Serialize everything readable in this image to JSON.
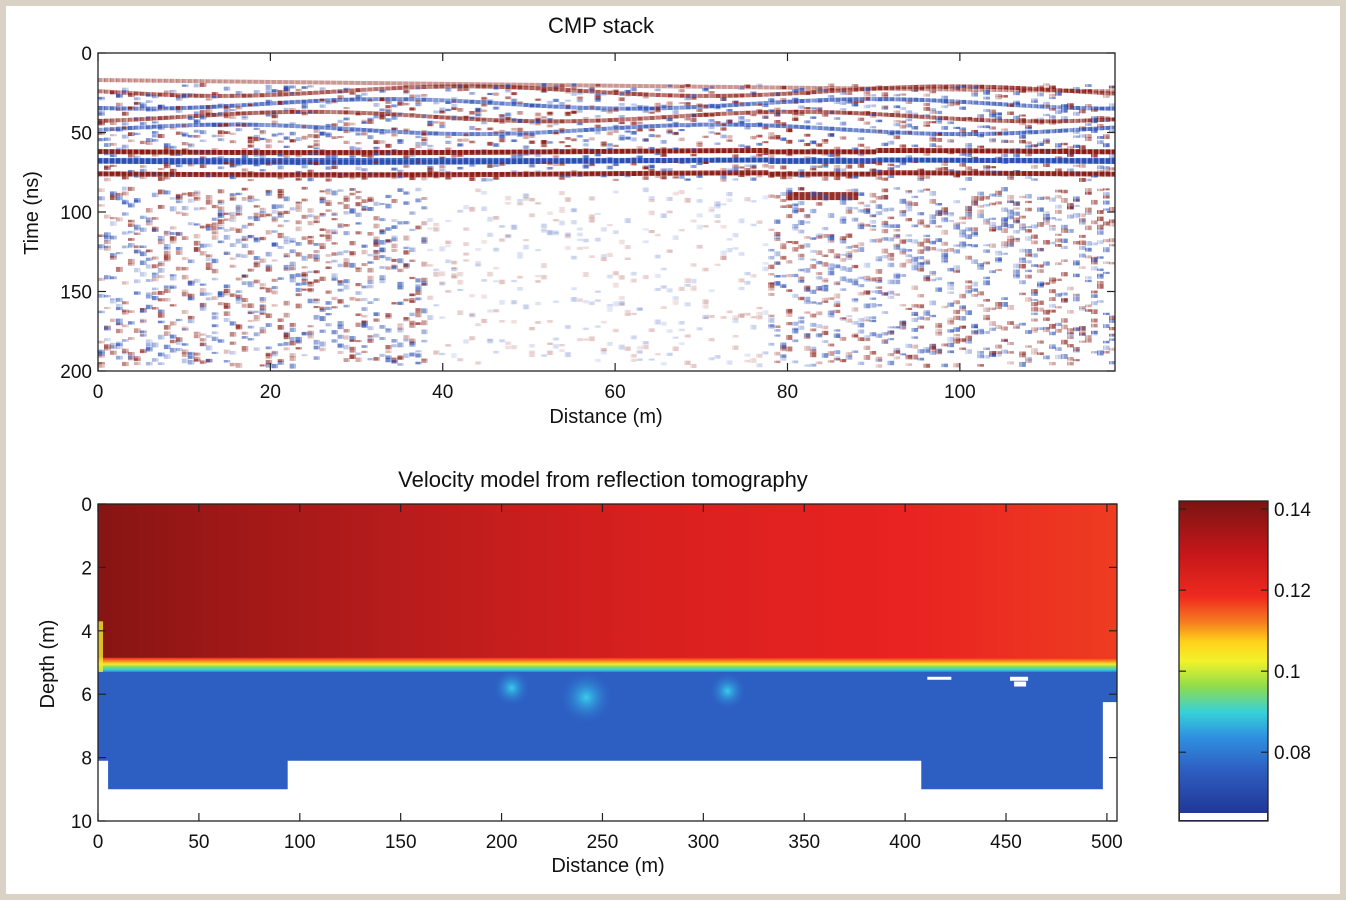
{
  "chart_data": [
    {
      "type": "heatmap",
      "title": "CMP stack",
      "xlabel": "Distance (m)",
      "ylabel": "Time (ns)",
      "xlim": [
        0,
        118
      ],
      "ylim": [
        0,
        200
      ],
      "y_inverted": true,
      "x_ticks": [
        0,
        20,
        40,
        60,
        80,
        100
      ],
      "y_ticks": [
        0,
        50,
        100,
        150,
        200
      ],
      "colormap": "red-white-blue",
      "colors": {
        "positive": "#8b1a12",
        "negative": "#2a4fb5",
        "zero": "#ffffff"
      },
      "grid": false,
      "features": [
        {
          "label": "shallow reflector",
          "y": 17
        },
        {
          "label": "main reflector (red)",
          "y": 62
        },
        {
          "label": "main reflector (blue)",
          "y": 68
        },
        {
          "label": "main reflector (red)",
          "y": 76
        }
      ]
    },
    {
      "type": "heatmap",
      "title": "Velocity model from reflection tomography",
      "xlabel": "Distance (m)",
      "ylabel": "Depth (m)",
      "xlim": [
        0,
        505
      ],
      "ylim": [
        0,
        10
      ],
      "y_inverted": true,
      "x_ticks": [
        0,
        50,
        100,
        150,
        200,
        250,
        300,
        350,
        400,
        450,
        500
      ],
      "y_ticks": [
        0,
        2,
        4,
        6,
        8,
        10
      ],
      "colormap": "jet",
      "colorbar": {
        "ticks": [
          0.14,
          0.12,
          0.1,
          0.08
        ],
        "range": [
          0.065,
          0.142
        ]
      },
      "grid": false,
      "layers": [
        {
          "label": "upper layer",
          "depth_top": 0,
          "depth_bottom": 5,
          "velocity_range": [
            0.13,
            0.14
          ]
        },
        {
          "label": "lower layer",
          "depth_top": 5.3,
          "depth_bottom": 8.1,
          "velocity_range": [
            0.07,
            0.09
          ]
        }
      ],
      "interface_depth": 5.1,
      "anomalies": [
        {
          "x": 205,
          "depth": 5.8,
          "velocity": 0.092
        },
        {
          "x": 242,
          "depth": 6.1,
          "velocity": 0.095
        },
        {
          "x": 312,
          "depth": 5.9,
          "velocity": 0.085
        }
      ]
    }
  ]
}
